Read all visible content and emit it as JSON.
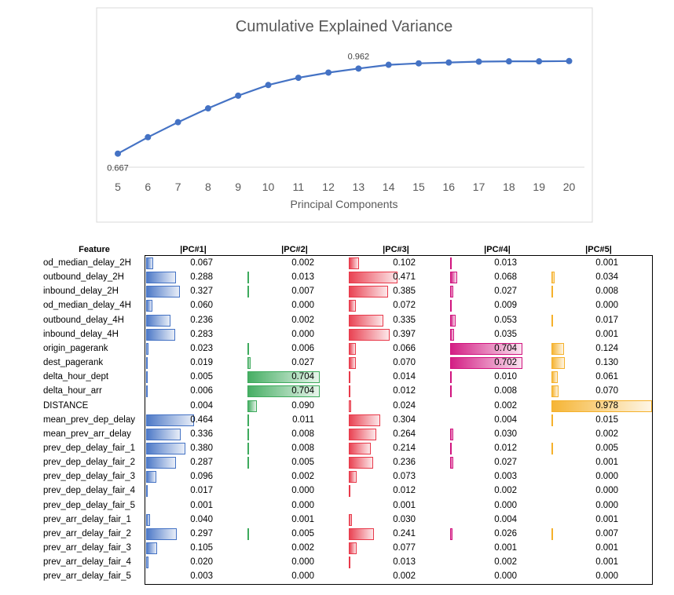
{
  "chart_data": [
    {
      "type": "line",
      "title": "Cumulative Explained Variance",
      "xlabel": "Principal Components",
      "ylabel": "",
      "x": [
        5,
        6,
        7,
        8,
        9,
        10,
        11,
        12,
        13,
        14,
        15,
        16,
        17,
        18,
        19,
        20
      ],
      "values": [
        0.667,
        0.724,
        0.776,
        0.824,
        0.868,
        0.905,
        0.93,
        0.948,
        0.962,
        0.975,
        0.98,
        0.983,
        0.986,
        0.987,
        0.987,
        0.988
      ],
      "ylim": [
        0.62,
        1.05
      ],
      "data_labels": [
        {
          "index": 0,
          "text": "0.667"
        },
        {
          "index": 8,
          "text": "0.962"
        }
      ],
      "color": "#4472C4",
      "grid": false
    },
    {
      "type": "table",
      "title": "",
      "columns": [
        "Feature",
        "|PC#1|",
        "|PC#2|",
        "|PC#3|",
        "|PC#4|",
        "|PC#5|"
      ],
      "bar_colors": [
        "#4472C4",
        "#3DAA5C",
        "#E8394A",
        "#D1137E",
        "#F5B12B"
      ],
      "column_max": [
        0.978,
        0.978,
        0.978,
        0.978,
        0.978
      ],
      "rows": [
        {
          "feature": "od_median_delay_2H",
          "values": [
            0.067,
            0.002,
            0.102,
            0.013,
            0.001
          ]
        },
        {
          "feature": "outbound_delay_2H",
          "values": [
            0.288,
            0.013,
            0.471,
            0.068,
            0.034
          ]
        },
        {
          "feature": "inbound_delay_2H",
          "values": [
            0.327,
            0.007,
            0.385,
            0.027,
            0.008
          ]
        },
        {
          "feature": "od_median_delay_4H",
          "values": [
            0.06,
            0.0,
            0.072,
            0.009,
            0.0
          ]
        },
        {
          "feature": "outbound_delay_4H",
          "values": [
            0.236,
            0.002,
            0.335,
            0.053,
            0.017
          ]
        },
        {
          "feature": "inbound_delay_4H",
          "values": [
            0.283,
            0.0,
            0.397,
            0.035,
            0.001
          ]
        },
        {
          "feature": "origin_pagerank",
          "values": [
            0.023,
            0.006,
            0.066,
            0.704,
            0.124
          ]
        },
        {
          "feature": "dest_pagerank",
          "values": [
            0.019,
            0.027,
            0.07,
            0.702,
            0.13
          ]
        },
        {
          "feature": "delta_hour_dept",
          "values": [
            0.005,
            0.704,
            0.014,
            0.01,
            0.061
          ]
        },
        {
          "feature": "delta_hour_arr",
          "values": [
            0.006,
            0.704,
            0.012,
            0.008,
            0.07
          ]
        },
        {
          "feature": "DISTANCE",
          "values": [
            0.004,
            0.09,
            0.024,
            0.002,
            0.978
          ]
        },
        {
          "feature": "mean_prev_dep_delay",
          "values": [
            0.464,
            0.011,
            0.304,
            0.004,
            0.015
          ]
        },
        {
          "feature": "mean_prev_arr_delay",
          "values": [
            0.336,
            0.008,
            0.264,
            0.03,
            0.002
          ]
        },
        {
          "feature": "prev_dep_delay_fair_1",
          "values": [
            0.38,
            0.008,
            0.214,
            0.012,
            0.005
          ]
        },
        {
          "feature": "prev_dep_delay_fair_2",
          "values": [
            0.287,
            0.005,
            0.236,
            0.027,
            0.001
          ]
        },
        {
          "feature": "prev_dep_delay_fair_3",
          "values": [
            0.096,
            0.002,
            0.073,
            0.003,
            0.0
          ]
        },
        {
          "feature": "prev_dep_delay_fair_4",
          "values": [
            0.017,
            0.0,
            0.012,
            0.002,
            0.0
          ]
        },
        {
          "feature": "prev_dep_delay_fair_5",
          "values": [
            0.001,
            0.0,
            0.001,
            0.0,
            0.0
          ]
        },
        {
          "feature": "prev_arr_delay_fair_1",
          "values": [
            0.04,
            0.001,
            0.03,
            0.004,
            0.001
          ]
        },
        {
          "feature": "prev_arr_delay_fair_2",
          "values": [
            0.297,
            0.005,
            0.241,
            0.026,
            0.007
          ]
        },
        {
          "feature": "prev_arr_delay_fair_3",
          "values": [
            0.105,
            0.002,
            0.077,
            0.001,
            0.001
          ]
        },
        {
          "feature": "prev_arr_delay_fair_4",
          "values": [
            0.02,
            0.0,
            0.013,
            0.002,
            0.001
          ]
        },
        {
          "feature": "prev_arr_delay_fair_5",
          "values": [
            0.003,
            0.0,
            0.002,
            0.0,
            0.0
          ]
        }
      ]
    }
  ]
}
